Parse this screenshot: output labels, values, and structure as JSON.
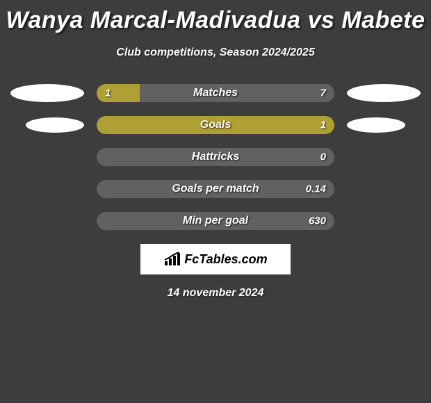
{
  "title": "Wanya Marcal-Madivadua vs Mabete",
  "subtitle": "Club competitions, Season 2024/2025",
  "colors": {
    "background": "#3d3d3d",
    "bar_track": "#616161",
    "bar_fill": "#aea033",
    "avatar": "#ffffff",
    "text": "#ffffff",
    "logo_bg": "#ffffff",
    "logo_text": "#000000"
  },
  "stats": [
    {
      "label": "Matches",
      "left_value": "1",
      "right_value": "7",
      "fill_percent": 18,
      "show_left_value": true,
      "show_avatars": true,
      "avatar_size": "large"
    },
    {
      "label": "Goals",
      "left_value": "",
      "right_value": "1",
      "fill_percent": 100,
      "show_left_value": false,
      "show_avatars": true,
      "avatar_size": "small"
    },
    {
      "label": "Hattricks",
      "left_value": "",
      "right_value": "0",
      "fill_percent": 0,
      "show_left_value": false,
      "show_avatars": false,
      "avatar_size": "small"
    },
    {
      "label": "Goals per match",
      "left_value": "",
      "right_value": "0.14",
      "fill_percent": 0,
      "show_left_value": false,
      "show_avatars": false,
      "avatar_size": "small"
    },
    {
      "label": "Min per goal",
      "left_value": "",
      "right_value": "630",
      "fill_percent": 0,
      "show_left_value": false,
      "show_avatars": false,
      "avatar_size": "small"
    }
  ],
  "logo": {
    "text": "FcTables.com"
  },
  "date": "14 november 2024"
}
